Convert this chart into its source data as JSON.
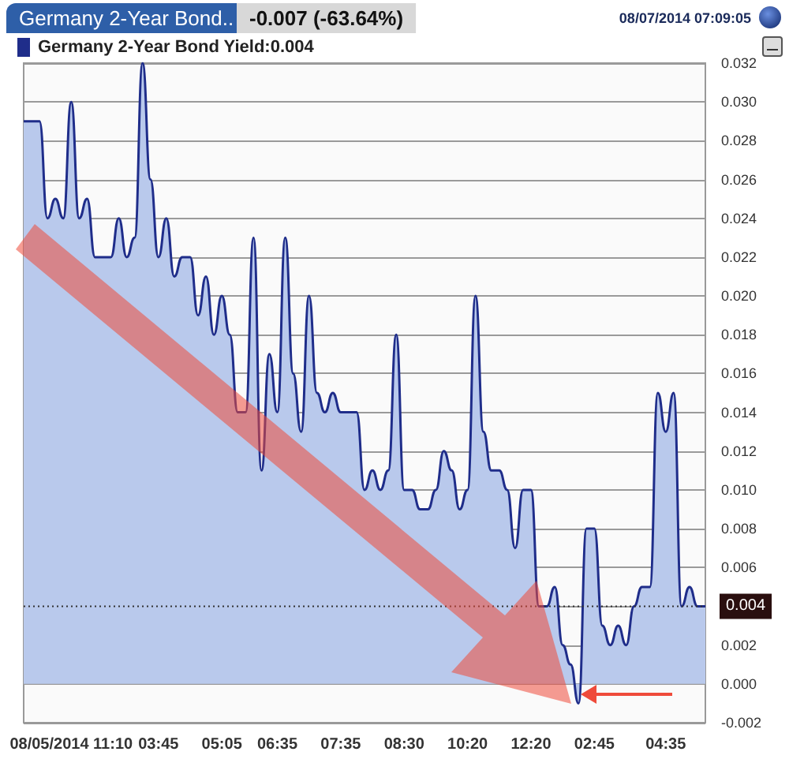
{
  "chart_data": {
    "type": "area",
    "title": "Germany 2-Year Bond..",
    "subtitle": "-0.007 (-63.64%)",
    "annotations": [
      "08/07/2014 07:09:05"
    ],
    "categories": [
      null,
      null,
      null,
      null,
      null,
      null,
      "08/05/2014 11:10",
      null,
      null,
      null,
      null,
      null,
      null,
      null,
      null,
      null,
      null,
      "03:45",
      null,
      null,
      null,
      null,
      null,
      null,
      null,
      "05:05",
      null,
      null,
      null,
      null,
      null,
      null,
      "06:35",
      null,
      null,
      null,
      null,
      null,
      null,
      null,
      "07:35",
      null,
      null,
      null,
      null,
      null,
      null,
      null,
      "08:30",
      null,
      null,
      null,
      null,
      null,
      null,
      null,
      "10:20",
      null,
      null,
      null,
      null,
      null,
      null,
      null,
      "12:20",
      null,
      null,
      null,
      null,
      null,
      null,
      null,
      "02:45",
      null,
      null,
      null,
      null,
      null,
      null,
      null,
      null,
      "04:35",
      null,
      null,
      null,
      null,
      null
    ],
    "series": [
      {
        "name": "Germany 2-Year Bond Yield:0.004",
        "color": "#1f2d8a",
        "values": [
          0.029,
          0.029,
          0.029,
          0.024,
          0.025,
          0.024,
          0.03,
          0.024,
          0.025,
          0.022,
          0.022,
          0.022,
          0.024,
          0.022,
          0.023,
          0.032,
          0.026,
          0.022,
          0.024,
          0.021,
          0.022,
          0.022,
          0.019,
          0.021,
          0.018,
          0.02,
          0.018,
          0.014,
          0.014,
          0.023,
          0.011,
          0.017,
          0.014,
          0.023,
          0.016,
          0.013,
          0.02,
          0.015,
          0.014,
          0.015,
          0.014,
          0.014,
          0.014,
          0.01,
          0.011,
          0.01,
          0.011,
          0.018,
          0.01,
          0.01,
          0.009,
          0.009,
          0.01,
          0.012,
          0.011,
          0.009,
          0.01,
          0.02,
          0.013,
          0.011,
          0.011,
          0.01,
          0.007,
          0.01,
          0.01,
          0.004,
          0.004,
          0.005,
          0.002,
          0.001,
          -0.001,
          0.008,
          0.008,
          0.003,
          0.002,
          0.003,
          0.002,
          0.004,
          0.005,
          0.005,
          0.015,
          0.013,
          0.015,
          0.004,
          0.005,
          0.004,
          0.004
        ]
      }
    ],
    "ylim": [
      -0.002,
      0.032
    ],
    "yticks": [
      {
        "value": -0.002,
        "label": "-0.002"
      },
      {
        "value": 0,
        "label": "0.000"
      },
      {
        "value": 0.002,
        "label": "0.002"
      },
      {
        "value": 0.004,
        "label": null
      },
      {
        "value": 0.006,
        "label": "0.006"
      },
      {
        "value": 0.008,
        "label": "0.008"
      },
      {
        "value": 0.01,
        "label": "0.010"
      },
      {
        "value": 0.012,
        "label": "0.012"
      },
      {
        "value": 0.014,
        "label": "0.014"
      },
      {
        "value": 0.016,
        "label": "0.016"
      },
      {
        "value": 0.018,
        "label": "0.018"
      },
      {
        "value": 0.02,
        "label": "0.020"
      },
      {
        "value": 0.022,
        "label": "0.022"
      },
      {
        "value": 0.024,
        "label": "0.024"
      },
      {
        "value": 0.026,
        "label": "0.026"
      },
      {
        "value": 0.028,
        "label": "0.028"
      },
      {
        "value": 0.03,
        "label": "0.030"
      },
      {
        "value": 0.032,
        "label": "0.032"
      }
    ],
    "ref_lines": [
      {
        "axis": "y",
        "value": 0.004,
        "label": "0.004",
        "color": "#333333",
        "line_style": "dotted"
      }
    ],
    "grid": "y",
    "legend": "top left",
    "marker": "none",
    "line_style": "solid"
  }
}
